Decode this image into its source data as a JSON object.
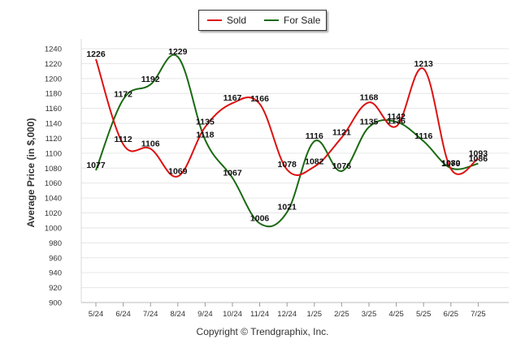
{
  "chart_data": {
    "type": "line",
    "title": "",
    "xlabel": "",
    "ylabel": "Average Price (in $,000)",
    "categories": [
      "5/24",
      "6/24",
      "7/24",
      "8/24",
      "9/24",
      "10/24",
      "11/24",
      "12/24",
      "1/25",
      "2/25",
      "3/25",
      "4/25",
      "5/25",
      "6/25",
      "7/25"
    ],
    "ylim": [
      900,
      1240
    ],
    "yticks": [
      900,
      920,
      940,
      960,
      980,
      1000,
      1020,
      1040,
      1060,
      1080,
      1100,
      1120,
      1140,
      1160,
      1180,
      1200,
      1220,
      1240
    ],
    "grid": true,
    "legend_position": "top-center",
    "series": [
      {
        "name": "Sold",
        "color": "#dd1111",
        "values": [
          1226,
          1112,
          1106,
          1069,
          1135,
          1167,
          1166,
          1078,
          1082,
          1121,
          1168,
          1136,
          1213,
          1079,
          1093
        ]
      },
      {
        "name": "For Sale",
        "color": "#1a6a12",
        "values": [
          1077,
          1172,
          1192,
          1229,
          1118,
          1067,
          1006,
          1021,
          1116,
          1076,
          1135,
          1142,
          1116,
          1080,
          1086
        ]
      }
    ]
  },
  "footer": {
    "copyright": "Copyright © Trendgraphix, Inc."
  }
}
